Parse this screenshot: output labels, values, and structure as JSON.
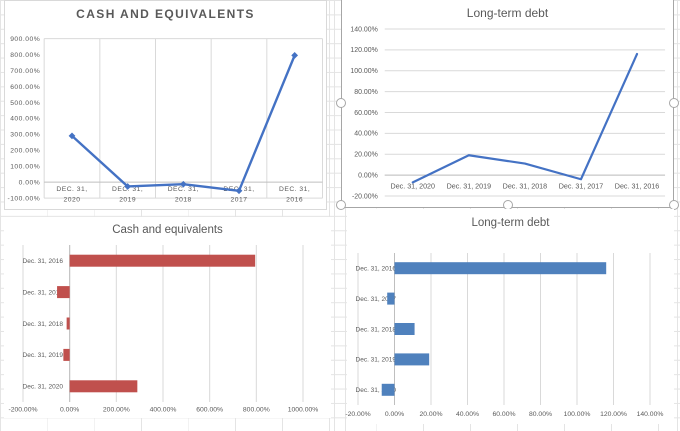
{
  "ui": {
    "selection_border_color": "#a6a6a6",
    "sheet_gridline_color": "#e4e4e4",
    "chart_gridline_color": "#d9d9d9",
    "chart_axis_color": "#bfbfbf",
    "chart_text_color": "#595959"
  },
  "chart_data": [
    {
      "id": "cash-line",
      "type": "line",
      "title": "CASH AND EQUIVALENTS",
      "categories": [
        "DEC. 31, 2020",
        "DEC. 31, 2019",
        "DEC. 31, 2018",
        "DEC. 31, 2017",
        "DEC. 31, 2016"
      ],
      "values": [
        290,
        -27,
        -13,
        -54,
        795
      ],
      "unit": "%",
      "ylim": [
        -100,
        900
      ],
      "y_ticks": [
        "-100.00%",
        "0.00%",
        "100.00%",
        "200.00%",
        "300.00%",
        "400.00%",
        "500.00%",
        "600.00%",
        "700.00%",
        "800.00%",
        "900.00%"
      ],
      "line_color": "#4472c4",
      "marker": "diamond",
      "gridlines": "vertical",
      "legend": "none",
      "selected": false
    },
    {
      "id": "ltd-line",
      "type": "line",
      "title": "Long-term debt",
      "categories": [
        "Dec. 31, 2020",
        "Dec. 31, 2019",
        "Dec. 31, 2018",
        "Dec. 31, 2017",
        "Dec. 31, 2016"
      ],
      "values": [
        -7,
        19,
        11,
        -4,
        116
      ],
      "unit": "%",
      "ylim": [
        -20,
        140
      ],
      "y_ticks": [
        "-20.00%",
        "0.00%",
        "20.00%",
        "40.00%",
        "60.00%",
        "80.00%",
        "100.00%",
        "120.00%",
        "140.00%"
      ],
      "line_color": "#4472c4",
      "marker": "none",
      "gridlines": "horizontal",
      "legend": "none",
      "selected": true
    },
    {
      "id": "cash-bar",
      "type": "bar",
      "title": "Cash and equivalents",
      "categories": [
        "Dec. 31, 2016",
        "Dec. 31, 2017",
        "Dec. 31, 2018",
        "Dec. 31, 2019",
        "Dec. 31, 2020"
      ],
      "values": [
        795,
        -54,
        -13,
        -27,
        290
      ],
      "unit": "%",
      "xlim": [
        -200,
        1000
      ],
      "x_ticks": [
        "-200.00%",
        "0.00%",
        "200.00%",
        "400.00%",
        "600.00%",
        "800.00%",
        "1000.00%"
      ],
      "bar_color": "#c0504d",
      "gridlines": "vertical",
      "legend": "none",
      "selected": false
    },
    {
      "id": "ltd-bar",
      "type": "bar",
      "title": "Long-term debt",
      "categories": [
        "Dec. 31, 2016",
        "Dec. 31, 2017",
        "Dec. 31, 2018",
        "Dec. 31, 2019",
        "Dec. 31, 2020"
      ],
      "values": [
        116,
        -4,
        11,
        19,
        -7
      ],
      "unit": "%",
      "xlim": [
        -20,
        140
      ],
      "x_ticks": [
        "-20.00%",
        "0.00%",
        "20.00%",
        "40.00%",
        "60.00%",
        "80.00%",
        "100.00%",
        "120.00%",
        "140.00%"
      ],
      "bar_color": "#4f81bd",
      "gridlines": "vertical",
      "legend": "none",
      "selected": false
    }
  ]
}
